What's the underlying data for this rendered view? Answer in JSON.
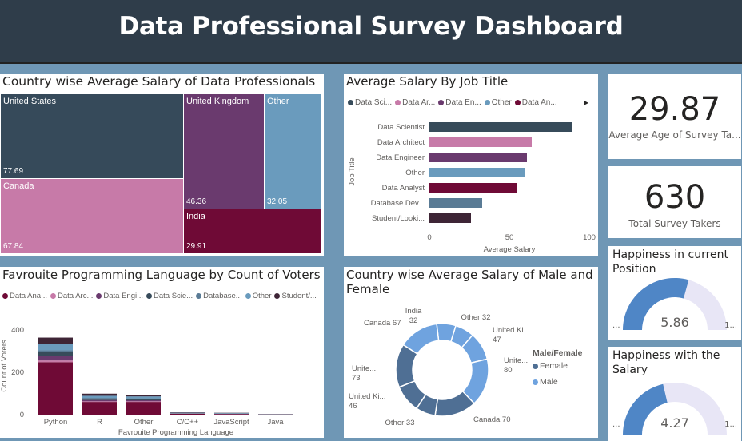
{
  "header": {
    "title": "Data Professional Survey Dashboard"
  },
  "treemap": {
    "title": "Country wise Average Salary of Data Professionals",
    "items": [
      {
        "name": "United States",
        "value": "77.69"
      },
      {
        "name": "Canada",
        "value": "67.84"
      },
      {
        "name": "United Kingdom",
        "value": "46.36"
      },
      {
        "name": "Other",
        "value": "32.05"
      },
      {
        "name": "India",
        "value": "29.91"
      }
    ]
  },
  "jobbar": {
    "title": "Average Salary By Job Title",
    "legend": [
      "Data Sci...",
      "Data Ar...",
      "Data En...",
      "Other",
      "Data An..."
    ],
    "ylabel": "Job Title",
    "xlabel": "Average Salary",
    "xticks": [
      "0",
      "50",
      "100"
    ]
  },
  "kpi1": {
    "value": "29.87",
    "label": "Average Age of Survey Ta..."
  },
  "kpi2": {
    "value": "630",
    "label": "Total Survey Takers"
  },
  "gauge1": {
    "title": "Happiness in current Position",
    "value": "5.86",
    "min": "...",
    "max": "1..."
  },
  "gauge2": {
    "title": "Happiness with the Salary",
    "value": "4.27",
    "min": "...",
    "max": "1..."
  },
  "langbar": {
    "title": "Favrouite Programming Language by Count of Voters",
    "legend": [
      "Data Ana...",
      "Data Arc...",
      "Data Engi...",
      "Data Scie...",
      "Database...",
      "Other",
      "Student/..."
    ],
    "ylabel": "Count of Voters",
    "xlabel": "Favrouite Programming Language",
    "yticks": [
      "400",
      "200",
      "0"
    ]
  },
  "donut": {
    "title": "Country wise Average Salary of Male and Female",
    "legend_title": "Male/Female",
    "legend": [
      "Female",
      "Male"
    ],
    "labels": [
      "India\n32",
      "Other 32",
      "United Ki...\n47",
      "Unite...\n80",
      "Canada 70",
      "Other 33",
      "United Ki...\n46",
      "Unite...\n73",
      "Canada 67"
    ]
  },
  "chart_data": [
    {
      "type": "bar",
      "title": "Average Salary By Job Title",
      "xlabel": "Average Salary",
      "ylabel": "Job Title",
      "categories": [
        "Data Scientist",
        "Data Architect",
        "Data Engineer",
        "Other",
        "Data Analyst",
        "Database Dev...",
        "Student/Looki..."
      ],
      "values": [
        89,
        64,
        61,
        60,
        55,
        33,
        26
      ],
      "colors": [
        "#374b5a",
        "#c77aa8",
        "#6a3a6e",
        "#6a9bbd",
        "#6f0a36",
        "#5a7b95",
        "#3e2536"
      ],
      "xlim": [
        0,
        100
      ]
    },
    {
      "type": "bar",
      "title": "Favrouite Programming Language by Count of Voters",
      "xlabel": "Favrouite Programming Language",
      "ylabel": "Count of Voters",
      "categories": [
        "Python",
        "R",
        "Other",
        "C/C++",
        "JavaScript",
        "Java"
      ],
      "series": [
        {
          "name": "Data Ana...",
          "values": [
            248,
            60,
            60,
            4,
            3,
            1
          ],
          "color": "#6f0a36"
        },
        {
          "name": "Data Arc...",
          "values": [
            8,
            3,
            3,
            0,
            0,
            0
          ],
          "color": "#c77aa8"
        },
        {
          "name": "Data Engi...",
          "values": [
            20,
            6,
            5,
            1,
            1,
            0
          ],
          "color": "#6a3a6e"
        },
        {
          "name": "Data Scie...",
          "values": [
            20,
            6,
            6,
            1,
            1,
            0
          ],
          "color": "#374b5a"
        },
        {
          "name": "Database...",
          "values": [
            8,
            4,
            3,
            1,
            1,
            0
          ],
          "color": "#5a7b95"
        },
        {
          "name": "Other",
          "values": [
            30,
            10,
            9,
            2,
            2,
            1
          ],
          "color": "#6a9bbd"
        },
        {
          "name": "Student/...",
          "values": [
            30,
            10,
            8,
            2,
            1,
            1
          ],
          "color": "#3e2536"
        }
      ],
      "ylim": [
        0,
        430
      ]
    },
    {
      "type": "pie",
      "title": "Country wise Average Salary of Male and Female",
      "categories": [
        "India (Male)",
        "Other (Male)",
        "United Ki... (Male)",
        "Unite... (Male)",
        "Canada (Female)",
        "Other (Female)",
        "United Ki... (Female)",
        "Unite... (Female)",
        "Canada (Male)"
      ],
      "values": [
        32,
        32,
        47,
        80,
        70,
        33,
        46,
        73,
        67
      ]
    }
  ]
}
